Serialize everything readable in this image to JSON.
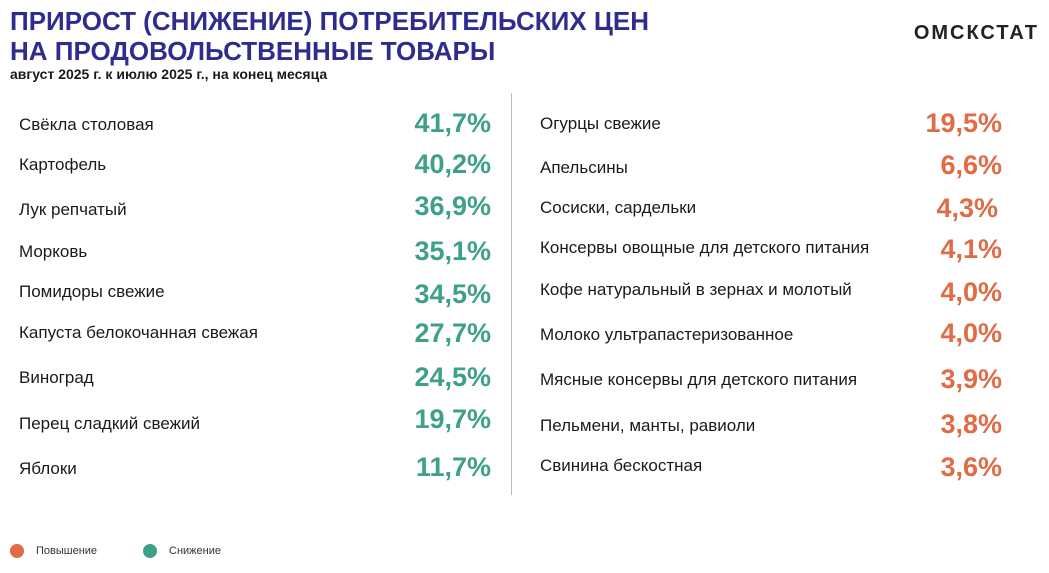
{
  "header": {
    "title_line1": "ПРИРОСТ (СНИЖЕНИЕ) ПОТРЕБИТЕЛЬСКИХ ЦЕН",
    "title_line2": "НА ПРОДОВОЛЬСТВЕННЫЕ ТОВАРЫ",
    "subtitle": "август 2025 г. к июлю 2025 г., на конец месяца",
    "brand": "ОМСКСТАТ"
  },
  "colors": {
    "title": "#2e2d8f",
    "decrease": "#3fa08a",
    "increase": "#e06b45"
  },
  "decrease_list": [
    {
      "label": "Свёкла столовая",
      "value": "41,7%"
    },
    {
      "label": "Картофель",
      "value": "40,2%"
    },
    {
      "label": "Лук репчатый",
      "value": "36,9%"
    },
    {
      "label": "Морковь",
      "value": "35,1%"
    },
    {
      "label": "Помидоры свежие",
      "value": "34,5%"
    },
    {
      "label": "Капуста белокочанная свежая",
      "value": "27,7%"
    },
    {
      "label": "Виноград",
      "value": "24,5%"
    },
    {
      "label": "Перец сладкий свежий",
      "value": "19,7%"
    },
    {
      "label": "Яблоки",
      "value": "11,7%"
    }
  ],
  "increase_list": [
    {
      "label": "Огурцы свежие",
      "value": "19,5%"
    },
    {
      "label": "Апельсины",
      "value": "6,6%"
    },
    {
      "label": "Сосиски, сардельки",
      "value": "4,3%"
    },
    {
      "label": "Консервы овощные для детского питания",
      "value": "4,1%"
    },
    {
      "label": "Кофе натуральный в зернах и молотый",
      "value": "4,0%"
    },
    {
      "label": "Молоко ультрапастеризованное",
      "value": "4,0%"
    },
    {
      "label": "Мясные консервы для детского питания",
      "value": "3,9%"
    },
    {
      "label": "Пельмени, манты, равиоли",
      "value": "3,8%"
    },
    {
      "label": "Свинина бескостная",
      "value": "3,6%"
    }
  ],
  "legend": {
    "increase": "Повышение",
    "decrease": "Снижение"
  }
}
